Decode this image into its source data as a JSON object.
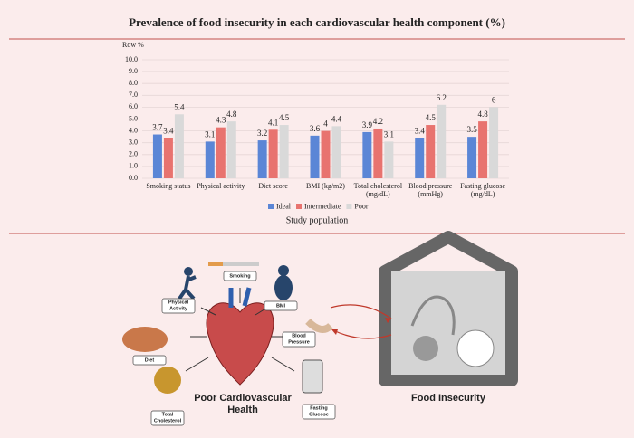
{
  "chart_data": {
    "type": "bar",
    "title": "Prevalence of food insecurity in each cardiovascular health component (%)",
    "ylabel": "Row %",
    "xlabel": "Study population",
    "categories": [
      "Smoking status",
      "Physical activity",
      "Diet score",
      "BMI (kg/m2)",
      "Total cholesterol\n(mg/dL)",
      "Blood pressure\n(mmHg)",
      "Fasting glucose\n(mg/dL)"
    ],
    "series": [
      {
        "name": "Ideal",
        "color": "#5b86d6",
        "values": [
          3.7,
          3.1,
          3.2,
          3.6,
          3.9,
          3.4,
          3.5
        ]
      },
      {
        "name": "Intermediate",
        "color": "#e8736f",
        "values": [
          3.4,
          4.3,
          4.1,
          4,
          4.2,
          4.5,
          4.8
        ]
      },
      {
        "name": "Poor",
        "color": "#d9d9d9",
        "values": [
          5.4,
          4.8,
          4.5,
          4.4,
          3.1,
          6.2,
          6
        ]
      }
    ],
    "ylim": [
      0,
      10
    ],
    "yticks": [
      {
        "value": 0,
        "label": "0.0"
      },
      {
        "value": 1,
        "label": "1.0"
      },
      {
        "value": 2,
        "label": "2.0"
      },
      {
        "value": 3,
        "label": "3.0"
      },
      {
        "value": 4,
        "label": "4.0"
      },
      {
        "value": 5,
        "label": "5.0"
      },
      {
        "value": 6,
        "label": "6.0"
      },
      {
        "value": 7,
        "label": "7.0"
      },
      {
        "value": 8,
        "label": "8.0"
      },
      {
        "value": 9,
        "label": "9.0"
      },
      {
        "value": 10,
        "label": "10.0"
      }
    ],
    "grid": true,
    "legend": "bottom"
  },
  "diagram": {
    "labels": [
      "Smoking",
      "Physical\nActivity",
      "BMI",
      "Blood\nPressure",
      "Diet",
      "Total\nCholesterol",
      "Fasting\nGlucose"
    ],
    "heart_caption": "Poor Cardiovascular\nHealth",
    "house_caption": "Food Insecurity"
  }
}
